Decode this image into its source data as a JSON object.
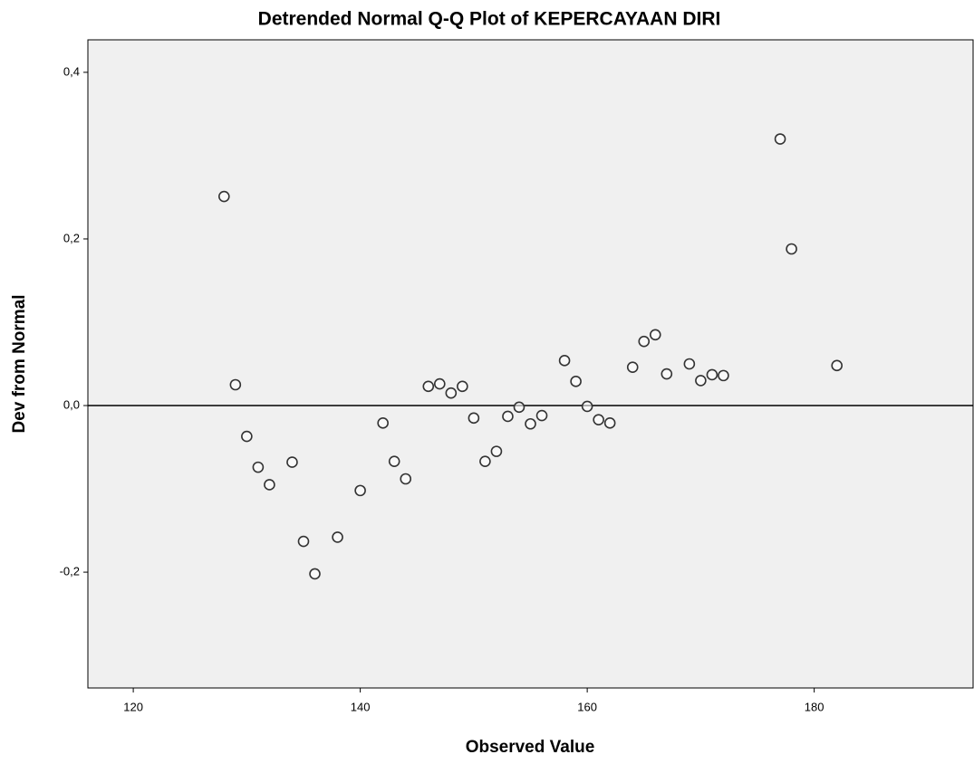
{
  "chart_data": {
    "type": "scatter",
    "title": "Detrended Normal Q-Q Plot of KEPERCAYAAN DIRI",
    "x_label": "Observed Value",
    "y_label": "Dev from Normal",
    "x": [
      128,
      129,
      130,
      131,
      132,
      134,
      135,
      136,
      138,
      140,
      142,
      143,
      144,
      146,
      147,
      148,
      149,
      150,
      151,
      152,
      153,
      154,
      155,
      156,
      158,
      159,
      160,
      161,
      162,
      164,
      165,
      166,
      167,
      169,
      170,
      171,
      172,
      177,
      178,
      182
    ],
    "values": [
      0.251,
      0.025,
      -0.037,
      -0.074,
      -0.095,
      -0.068,
      -0.163,
      -0.202,
      -0.158,
      -0.102,
      -0.021,
      -0.067,
      -0.088,
      0.023,
      0.026,
      0.015,
      0.023,
      -0.015,
      -0.067,
      -0.055,
      -0.013,
      -0.002,
      -0.022,
      -0.012,
      0.054,
      0.029,
      -0.001,
      -0.017,
      -0.021,
      0.046,
      0.077,
      0.085,
      0.038,
      0.05,
      0.03,
      0.037,
      0.036,
      0.32,
      0.188,
      0.048
    ],
    "color": "#333333",
    "xlim": [
      116,
      194
    ],
    "ylim": [
      -0.339,
      0.439
    ],
    "xticks": [
      120,
      140,
      160,
      180
    ],
    "yticks": [
      {
        "value": -0.2,
        "label": "-0,2"
      },
      {
        "value": 0,
        "label": "0,0"
      },
      {
        "value": 0.2,
        "label": "0,2"
      },
      {
        "value": 0.4,
        "label": "0,4"
      }
    ],
    "reference_line": 0
  }
}
